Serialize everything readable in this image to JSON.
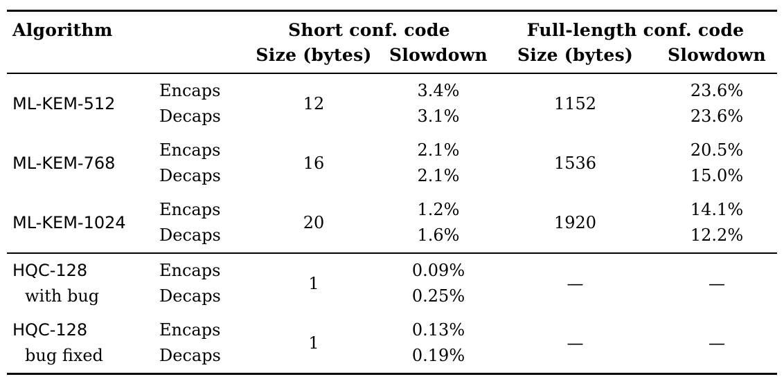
{
  "header": {
    "algorithm": "Algorithm",
    "short_group": "Short conf. code",
    "full_group": "Full-length conf. code",
    "short_size": "Size (bytes)",
    "short_slowdown": "Slowdown",
    "full_size": "Size (bytes)",
    "full_slowdown": "Slowdown"
  },
  "rows": [
    {
      "name": "ML-KEM-512",
      "sub": "",
      "op1": "Encaps",
      "op2": "Decaps",
      "short_size": "12",
      "short_slowdown1": "3.4%",
      "short_slowdown2": "3.1%",
      "full_size": "1152",
      "full_slowdown1": "23.6%",
      "full_slowdown2": "23.6%"
    },
    {
      "name": "ML-KEM-768",
      "sub": "",
      "op1": "Encaps",
      "op2": "Decaps",
      "short_size": "16",
      "short_slowdown1": "2.1%",
      "short_slowdown2": "2.1%",
      "full_size": "1536",
      "full_slowdown1": "20.5%",
      "full_slowdown2": "15.0%"
    },
    {
      "name": "ML-KEM-1024",
      "sub": "",
      "op1": "Encaps",
      "op2": "Decaps",
      "short_size": "20",
      "short_slowdown1": "1.2%",
      "short_slowdown2": "1.6%",
      "full_size": "1920",
      "full_slowdown1": "14.1%",
      "full_slowdown2": "12.2%"
    },
    {
      "name": "HQC-128",
      "sub": "with bug",
      "op1": "Encaps",
      "op2": "Decaps",
      "short_size": "1",
      "short_slowdown1": "0.09%",
      "short_slowdown2": "0.25%",
      "full_size": "—",
      "full_slowdown1": "—",
      "full_slowdown2": ""
    },
    {
      "name": "HQC-128",
      "sub": "bug fixed",
      "op1": "Encaps",
      "op2": "Decaps",
      "short_size": "1",
      "short_slowdown1": "0.13%",
      "short_slowdown2": "0.19%",
      "full_size": "—",
      "full_slowdown1": "—",
      "full_slowdown2": ""
    }
  ]
}
